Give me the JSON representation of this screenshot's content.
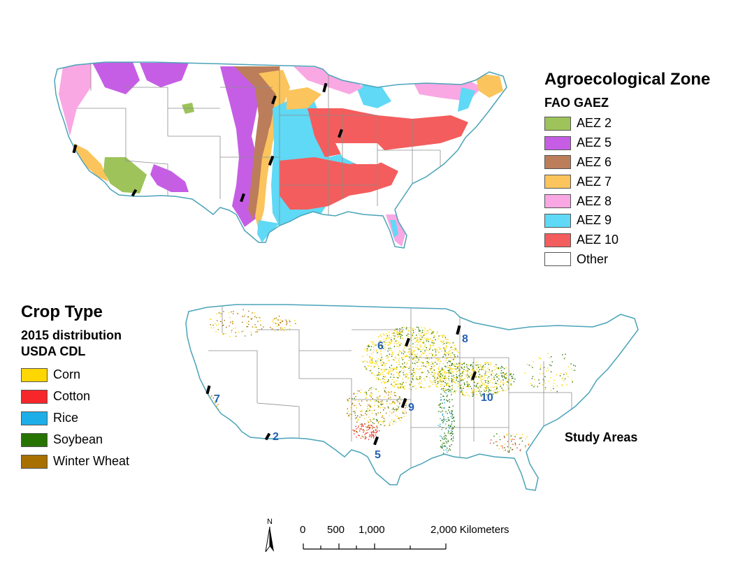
{
  "aez_legend": {
    "title": "Agroecological Zone",
    "subtitle": "FAO GAEZ",
    "items": [
      {
        "label": "AEZ 2",
        "color": "#9dc35a"
      },
      {
        "label": "AEZ 5",
        "color": "#c65ee5"
      },
      {
        "label": "AEZ 6",
        "color": "#bc7d5a"
      },
      {
        "label": "AEZ 7",
        "color": "#fbc45c"
      },
      {
        "label": "AEZ 8",
        "color": "#f9a8e3"
      },
      {
        "label": "AEZ 9",
        "color": "#5fd9f5"
      },
      {
        "label": "AEZ 10",
        "color": "#f45d5d"
      },
      {
        "label": "Other",
        "color": "#ffffff"
      }
    ]
  },
  "crop_legend": {
    "title": "Crop Type",
    "subtitle_line1": "2015 distribution",
    "subtitle_line2": "USDA CDL",
    "items": [
      {
        "label": "Corn",
        "color": "#ffd600"
      },
      {
        "label": "Cotton",
        "color": "#f6262a"
      },
      {
        "label": "Rice",
        "color": "#1daee8"
      },
      {
        "label": "Soybean",
        "color": "#267300"
      },
      {
        "label": "Winter Wheat",
        "color": "#a87000"
      }
    ]
  },
  "study_areas": {
    "label": "Study Areas",
    "numbers": [
      "6",
      "8",
      "7",
      "9",
      "10",
      "2",
      "5"
    ]
  },
  "scale_bar": {
    "labels": [
      "0",
      "500",
      "1,000",
      "2,000 Kilometers"
    ],
    "north": "N"
  },
  "colors": {
    "state_border": "#8c8c8c",
    "coast": "#4aa3b8",
    "study_number": "#2460b4"
  }
}
